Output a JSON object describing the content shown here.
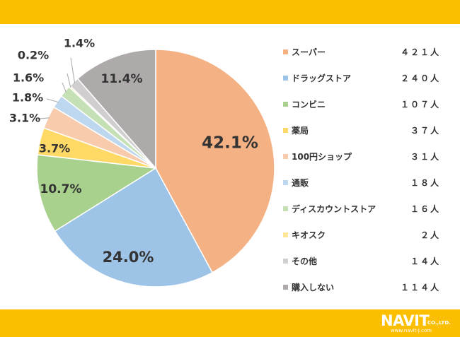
{
  "chart_data": {
    "type": "pie",
    "start_angle_deg": 0,
    "direction": "clockwise",
    "slices": [
      {
        "label": "スーパー",
        "count": "４２１人",
        "value": 42.1,
        "pct_label": "42.1%",
        "color": "#f4b183"
      },
      {
        "label": "ドラッグストア",
        "count": "２４０人",
        "value": 24.0,
        "pct_label": "24.0%",
        "color": "#9dc3e6"
      },
      {
        "label": "コンビニ",
        "count": "１０７人",
        "value": 10.7,
        "pct_label": "10.7%",
        "color": "#a9d18e"
      },
      {
        "label": "薬局",
        "count": "３７人",
        "value": 3.7,
        "pct_label": "3.7%",
        "color": "#ffd966"
      },
      {
        "label": "100円ショップ",
        "count": "３１人",
        "value": 3.1,
        "pct_label": "3.1%",
        "color": "#f8cbad"
      },
      {
        "label": "通販",
        "count": "１８人",
        "value": 1.8,
        "pct_label": "1.8%",
        "color": "#bdd7ee"
      },
      {
        "label": "ディスカウントストア",
        "count": "１６人",
        "value": 1.6,
        "pct_label": "1.6%",
        "color": "#c5e0b4"
      },
      {
        "label": "キオスク",
        "count": "２人",
        "value": 0.2,
        "pct_label": "0.2%",
        "color": "#ffe699"
      },
      {
        "label": "その他",
        "count": "１４人",
        "value": 1.4,
        "pct_label": "1.4%",
        "color": "#d0cece"
      },
      {
        "label": "購入しない",
        "count": "１１４人",
        "value": 11.4,
        "pct_label": "11.4%",
        "color": "#aeaaaa"
      }
    ]
  },
  "logo": {
    "brand": "NAVIT",
    "suffix": "CO.,LTD.",
    "url": "www.navit-j.com"
  },
  "colors": {
    "band": "#fcbf00",
    "label_text": "#333333"
  }
}
